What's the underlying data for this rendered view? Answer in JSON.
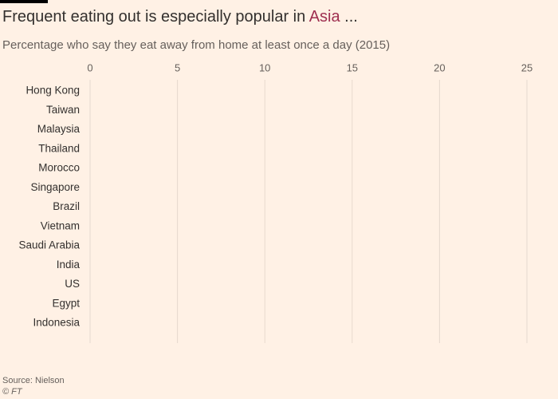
{
  "chart_data": {
    "type": "bar",
    "orientation": "horizontal",
    "title": {
      "text": "Frequent eating out is especially popular in",
      "highlight": "Asia",
      "suffix": "..."
    },
    "highlight_color": "#9e2f50",
    "subtitle": "Percentage who say they eat away from home at least once a day (2015)",
    "categories": [
      "Hong Kong",
      "Taiwan",
      "Malaysia",
      "Thailand",
      "Morocco",
      "Singapore",
      "Brazil",
      "Vietnam",
      "Saudi Arabia",
      "India",
      "US",
      "Egypt",
      "Indonesia"
    ],
    "xlim": [
      0,
      25
    ],
    "xticks": [
      0,
      5,
      10,
      15,
      20,
      25
    ],
    "grid": true,
    "source": "Source: Nielson",
    "credit": "© FT"
  }
}
